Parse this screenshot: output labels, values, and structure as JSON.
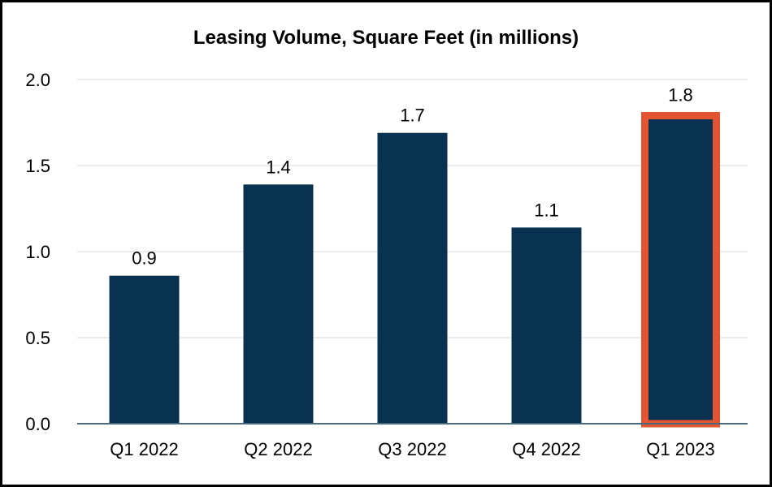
{
  "chart_data": {
    "type": "bar",
    "title": "Leasing Volume, Square Feet (in millions)",
    "xlabel": "",
    "ylabel": "",
    "categories": [
      "Q1 2022",
      "Q2 2022",
      "Q3 2022",
      "Q4 2022",
      "Q1 2023"
    ],
    "values": [
      0.86,
      1.39,
      1.69,
      1.14,
      1.79
    ],
    "data_labels": [
      "0.9",
      "1.4",
      "1.7",
      "1.1",
      "1.8"
    ],
    "ylim": [
      0,
      2.0
    ],
    "yticks": [
      "0.0",
      "0.5",
      "1.0",
      "1.5",
      "2.0"
    ],
    "grid": true,
    "legend": "none",
    "highlighted_category": "Q1 2023",
    "colors": {
      "bar": "#08324f",
      "highlight_border": "#e25530",
      "grid": "#e6e6e6",
      "axis": "#4a6a80"
    }
  }
}
